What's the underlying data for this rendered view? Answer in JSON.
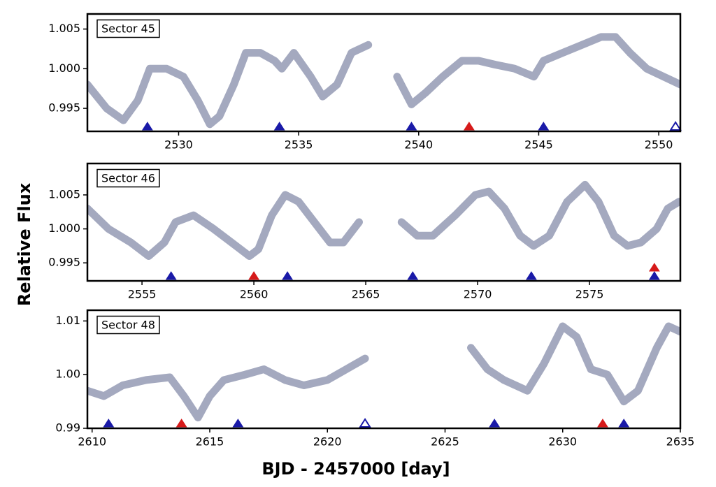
{
  "ylabel": "Relative Flux",
  "xlabel": "BJD - 2457000 [day]",
  "chart_data": [
    {
      "type": "line",
      "label": "Sector 45",
      "xlim": [
        2526.2,
        2550.9
      ],
      "ylim": [
        0.9921,
        1.0069
      ],
      "xticks": [
        2530,
        2535,
        2540,
        2545,
        2550
      ],
      "yticks": [
        0.995,
        {
          "value": 1.0,
          "label": "1.000"
        },
        1.005
      ],
      "series": [
        {
          "color": "#9aa0b8",
          "x": [
            2526.2,
            2527,
            2527.7,
            2528.3,
            2528.8,
            2529.5,
            2530.2,
            2530.8,
            2531.3,
            2531.7,
            2532.3,
            2532.8,
            2533.4,
            2534.0,
            2534.3,
            2534.8,
            2535.5,
            2536.0,
            2536.6,
            2537.2,
            2537.9,
            null,
            2539.1,
            2539.7,
            2540.3,
            2541.0,
            2541.8,
            2542.5,
            2543.2,
            2544.0,
            2544.8,
            2545.2,
            2546.0,
            2546.8,
            2547.6,
            2548.2,
            2548.8,
            2549.5,
            2550.2,
            2550.9
          ],
          "values": [
            0.998,
            0.995,
            0.9935,
            0.996,
            1.0,
            1.0,
            0.999,
            0.996,
            0.993,
            0.994,
            0.998,
            1.002,
            1.002,
            1.001,
            1.0,
            1.002,
            0.999,
            0.9965,
            0.998,
            1.002,
            1.003,
            null,
            0.999,
            0.9955,
            0.997,
            0.999,
            1.001,
            1.001,
            1.0005,
            1.0,
            0.999,
            1.001,
            1.002,
            1.003,
            1.004,
            1.004,
            1.002,
            1.0,
            0.999,
            0.998
          ]
        }
      ],
      "markers": {
        "x": [
          2528.7,
          2534.2,
          2539.7,
          2542.1,
          2545.2,
          2550.7
        ],
        "colors": [
          "#1a1aa8",
          "#1a1aa8",
          "#1a1aa8",
          "#d61a1a",
          "#1a1aa8",
          "#1a1aa8"
        ],
        "filled": [
          true,
          true,
          true,
          true,
          true,
          false
        ]
      }
    },
    {
      "type": "line",
      "label": "Sector 46",
      "xlim": [
        2552.56,
        2579.06
      ],
      "ylim": [
        0.99235,
        1.00962
      ],
      "xticks": [
        2555,
        2560,
        2565,
        2570,
        2575
      ],
      "yticks": [
        0.995,
        {
          "value": 1.0,
          "label": "1.000"
        },
        1.005
      ],
      "series": [
        {
          "color": "#9aa0b8",
          "x": [
            2552.56,
            2553.5,
            2554.5,
            2555.3,
            2556.0,
            2556.5,
            2557.3,
            2558.2,
            2559.0,
            2559.8,
            2560.2,
            2560.8,
            2561.4,
            2562.0,
            2562.7,
            2563.4,
            2564.0,
            2564.7,
            null,
            2566.6,
            2567.3,
            2568.0,
            2569.0,
            2569.9,
            2570.5,
            2571.2,
            2571.9,
            2572.5,
            2573.2,
            2574.0,
            2574.8,
            2575.4,
            2576.1,
            2576.7,
            2577.3,
            2578.0,
            2578.5,
            2579.0
          ],
          "values": [
            1.003,
            1.0,
            0.998,
            0.996,
            0.998,
            1.001,
            1.002,
            1.0,
            0.998,
            0.996,
            0.997,
            1.002,
            1.005,
            1.004,
            1.001,
            0.998,
            0.998,
            1.001,
            null,
            1.001,
            0.999,
            0.999,
            1.002,
            1.005,
            1.0055,
            1.003,
            0.999,
            0.9975,
            0.999,
            1.004,
            1.0065,
            1.004,
            0.999,
            0.9975,
            0.998,
            1.0,
            1.003,
            1.004
          ]
        }
      ],
      "markers": {
        "x": [
          2556.3,
          2560.0,
          2561.5,
          2567.1,
          2572.4,
          2577.9,
          2577.9
        ],
        "colors": [
          "#1a1aa8",
          "#d61a1a",
          "#1a1aa8",
          "#1a1aa8",
          "#1a1aa8",
          "#1a1aa8",
          "#d61a1a"
        ],
        "filled": [
          true,
          true,
          true,
          true,
          true,
          true,
          true
        ]
      }
    },
    {
      "type": "line",
      "label": "Sector 48",
      "xlim": [
        2609.8,
        2635
      ],
      "ylim": [
        0.99,
        1.012
      ],
      "xticks": [
        2610,
        2615,
        2620,
        2625,
        2630,
        2635
      ],
      "yticks": [
        0.99,
        {
          "value": 1.0,
          "label": "1.00"
        },
        1.01
      ],
      "series": [
        {
          "color": "#9aa0b8",
          "x": [
            2609.8,
            2610.5,
            2611.3,
            2612.3,
            2613.3,
            2613.9,
            2614.5,
            2615.0,
            2615.6,
            2616.5,
            2617.3,
            2618.2,
            2619.0,
            2620.0,
            2620.8,
            2621.6,
            null,
            2626.1,
            2626.8,
            2627.5,
            2628.5,
            2629.2,
            2630.0,
            2630.6,
            2631.2,
            2631.9,
            2632.6,
            2633.2,
            2634.0,
            2634.5,
            2635.0
          ],
          "values": [
            0.997,
            0.996,
            0.998,
            0.999,
            0.9995,
            0.996,
            0.992,
            0.996,
            0.999,
            1.0,
            1.001,
            0.999,
            0.998,
            0.999,
            1.001,
            1.003,
            null,
            1.005,
            1.001,
            0.999,
            0.997,
            1.002,
            1.009,
            1.007,
            1.001,
            1.0,
            0.995,
            0.997,
            1.005,
            1.009,
            1.008
          ]
        }
      ],
      "markers": {
        "x": [
          2610.7,
          2613.8,
          2616.2,
          2621.6,
          2627.1,
          2631.7,
          2632.6
        ],
        "colors": [
          "#1a1aa8",
          "#d61a1a",
          "#1a1aa8",
          "#1a1aa8",
          "#1a1aa8",
          "#d61a1a",
          "#1a1aa8"
        ],
        "filled": [
          true,
          true,
          true,
          false,
          true,
          true,
          true
        ]
      }
    }
  ]
}
